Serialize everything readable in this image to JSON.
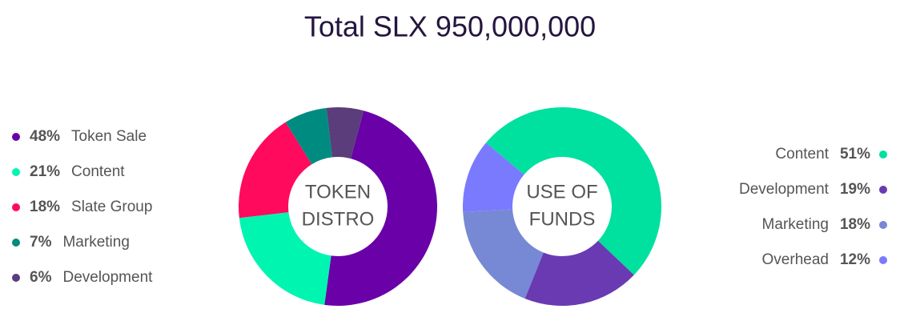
{
  "title": "Total SLX 950,000,000",
  "chart_data": [
    {
      "type": "pie",
      "center_label": [
        "TOKEN",
        "DISTRO"
      ],
      "categories": [
        "Token Sale",
        "Content",
        "Slate Group",
        "Marketing",
        "Development"
      ],
      "values": [
        48,
        21,
        18,
        7,
        6
      ],
      "value_labels": [
        "48%",
        "21%",
        "18%",
        "7%",
        "6%"
      ],
      "colors": [
        "#6a00a8",
        "#00f5b0",
        "#ff0a5c",
        "#008b80",
        "#5a3d7a"
      ]
    },
    {
      "type": "pie",
      "center_label": [
        "USE OF",
        "FUNDS"
      ],
      "categories": [
        "Content",
        "Development",
        "Marketing",
        "Overhead"
      ],
      "values": [
        51,
        19,
        18,
        12
      ],
      "value_labels": [
        "51%",
        "19%",
        "18%",
        "12%"
      ],
      "colors": [
        "#00e09e",
        "#6a3ab2",
        "#7788d4",
        "#7a7aff"
      ]
    }
  ]
}
